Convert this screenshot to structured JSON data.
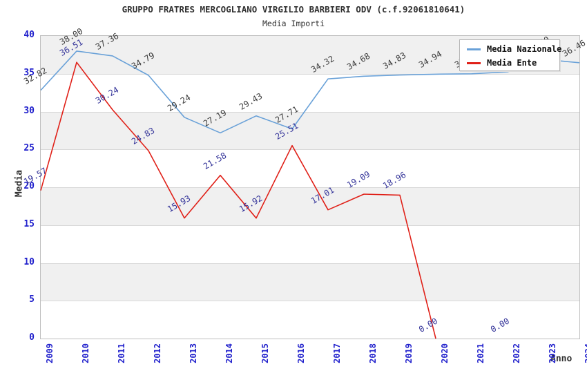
{
  "title": "GRUPPO FRATRES MERCOGLIANO VIRGILIO BARBIERI ODV (c.f.92061810641)",
  "subtitle": "Media Importi",
  "chart_data": {
    "type": "line",
    "x": [
      "2009",
      "2010",
      "2011",
      "2012",
      "2013",
      "2014",
      "2015",
      "2016",
      "2017",
      "2018",
      "2019",
      "2020",
      "2021",
      "2022",
      "2023",
      "2024"
    ],
    "series": [
      {
        "name": "Media Nazionale",
        "color": "#69a1d8",
        "label_color": "#3c3c3c",
        "values": [
          32.82,
          38.0,
          37.36,
          34.79,
          29.24,
          27.19,
          29.43,
          27.71,
          34.32,
          34.68,
          34.83,
          34.94,
          35.0,
          35.25,
          36.9,
          36.46
        ],
        "values_hidden_by_legend": [
          "2021",
          "2022",
          "2023"
        ]
      },
      {
        "name": "Media Ente",
        "color": "#e02018",
        "label_color": "#333399",
        "values": [
          19.57,
          36.51,
          30.24,
          24.83,
          15.93,
          21.58,
          15.92,
          25.51,
          17.01,
          19.09,
          18.96,
          0.0,
          null,
          0.0,
          null,
          null
        ]
      }
    ],
    "xlabel": "Anno",
    "ylabel": "Media",
    "ylim": [
      0,
      40
    ],
    "ytick_step": 5,
    "grid": "horizontal-bands-alternating",
    "legend_position": "top-right"
  },
  "axes": {
    "y_ticks": [
      40,
      35,
      30,
      25,
      20,
      15,
      10,
      5,
      0
    ],
    "x_ticks": [
      "2009",
      "2010",
      "2011",
      "2012",
      "2013",
      "2014",
      "2015",
      "2016",
      "2017",
      "2018",
      "2019",
      "2020",
      "2021",
      "2022",
      "2023",
      "2024"
    ]
  },
  "legend": {
    "items": [
      {
        "label": "Media Nazionale",
        "color": "#69a1d8"
      },
      {
        "label": "Media Ente",
        "color": "#e02018"
      }
    ]
  },
  "colors": {
    "tick_label": "#2020cc",
    "band_gray": "#f0f0f0",
    "band_white": "#ffffff",
    "gridline": "#d8d8d8",
    "plot_border": "#bfbfbf",
    "title_text": "#303030"
  }
}
